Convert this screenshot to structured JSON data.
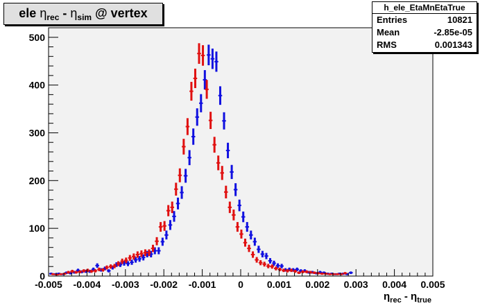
{
  "chart_data": {
    "type": "scatter",
    "title": {
      "p1": "ele ",
      "eta1": "η",
      "sub1": "rec",
      "p2": " - ",
      "eta2": "η",
      "sub2": "sim",
      "p3": " @ vertex"
    },
    "stats": {
      "name": "h_ele_EtaMnEtaTrue",
      "rows": [
        {
          "label": "Entries",
          "value": "10821"
        },
        {
          "label": "Mean",
          "value": "-2.85e-05"
        },
        {
          "label": "RMS",
          "value": "0.001343"
        }
      ]
    },
    "xlabel": {
      "eta1": "η",
      "sub1": "rec",
      "mid": " - ",
      "eta2": "η",
      "sub2": "true"
    },
    "xlim": [
      -0.005,
      0.005
    ],
    "ylim": [
      0,
      520
    ],
    "x_ticks": [
      "-0.005",
      "-0.004",
      "-0.003",
      "-0.002",
      "-0.001",
      "0",
      "0.001",
      "0.002",
      "0.003",
      "0.004",
      "0.005"
    ],
    "y_ticks": [
      "0",
      "100",
      "200",
      "300",
      "400",
      "500"
    ],
    "bin_width": 0.0001,
    "series": [
      {
        "color": "#1010e0",
        "x_start": -0.004933,
        "values": [
          5,
          4,
          5,
          4,
          7,
          6,
          8,
          12,
          9,
          10,
          10,
          14,
          22,
          13,
          16,
          11,
          18,
          24,
          24,
          27,
          26,
          29,
          34,
          36,
          39,
          46,
          46,
          53,
          53,
          72,
          86,
          107,
          125,
          152,
          175,
          210,
          248,
          292,
          333,
          362,
          411,
          463,
          455,
          449,
          378,
          325,
          263,
          218,
          181,
          148,
          124,
          103,
          86,
          72,
          56,
          46,
          42,
          32,
          27,
          22,
          21,
          13,
          14,
          13,
          14,
          11,
          11,
          8,
          8,
          6,
          8,
          7,
          5,
          5,
          4,
          5,
          5,
          4,
          7
        ]
      },
      {
        "color": "#e01010",
        "x_start": -0.004883,
        "values": [
          4,
          3,
          4,
          5,
          8,
          10,
          8,
          9,
          11,
          12,
          10,
          11,
          14,
          13,
          18,
          20,
          21,
          26,
          31,
          33,
          38,
          41,
          45,
          47,
          49,
          49,
          58,
          73,
          103,
          105,
          137,
          144,
          182,
          211,
          271,
          313,
          387,
          414,
          466,
          462,
          391,
          326,
          275,
          237,
          216,
          176,
          144,
          128,
          103,
          88,
          70,
          58,
          45,
          34,
          28,
          25,
          21,
          20,
          16,
          14,
          12,
          11,
          12,
          10,
          7,
          9,
          9,
          8,
          7,
          6,
          5,
          5,
          4,
          4,
          4,
          4,
          6
        ]
      }
    ]
  }
}
